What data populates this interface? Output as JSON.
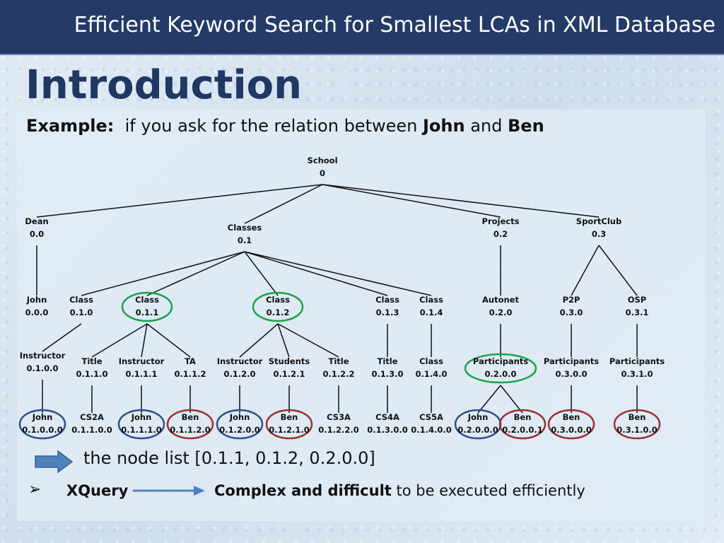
{
  "slide": {
    "title": "Efficient Keyword Search for Smallest LCAs in XML Database",
    "heading": "Introduction",
    "example_label": "Example:",
    "example_text_1": "if you ask for the relation between",
    "example_name_1": "John",
    "example_and": "and",
    "example_name_2": "Ben",
    "node_list_text": "the node list [0.1.1, 0.1.2, 0.2.0.0]",
    "bullet_symbol": "➢",
    "xquery_label": "XQuery",
    "complex_bold": "Complex and difficult",
    "complex_rest": "to be executed efficiently"
  },
  "colors": {
    "title_bar": "#243b68",
    "heading": "#1f3864",
    "green_circle": "#1aa34a",
    "blue_circle": "#2f4f8a",
    "red_circle": "#9b2f2f",
    "arrow_fill": "#4f81bd"
  },
  "tree": {
    "nodes": [
      {
        "id": "n0",
        "name": "School",
        "code": "0"
      },
      {
        "id": "n00",
        "name": "Dean",
        "code": "0.0"
      },
      {
        "id": "n01",
        "name": "Classes",
        "code": "0.1"
      },
      {
        "id": "n02",
        "name": "Projects",
        "code": "0.2"
      },
      {
        "id": "n03",
        "name": "SportClub",
        "code": "0.3"
      },
      {
        "id": "n000",
        "name": "John",
        "code": "0.0.0"
      },
      {
        "id": "n010",
        "name": "Class",
        "code": "0.1.0"
      },
      {
        "id": "n011",
        "name": "Class",
        "code": "0.1.1",
        "highlight": "green"
      },
      {
        "id": "n012",
        "name": "Class",
        "code": "0.1.2",
        "highlight": "green"
      },
      {
        "id": "n013",
        "name": "Class",
        "code": "0.1.3"
      },
      {
        "id": "n014",
        "name": "Class",
        "code": "0.1.4"
      },
      {
        "id": "n020",
        "name": "Autonet",
        "code": "0.2.0"
      },
      {
        "id": "n030",
        "name": "P2P",
        "code": "0.3.0"
      },
      {
        "id": "n031",
        "name": "OSP",
        "code": "0.3.1"
      },
      {
        "id": "n0100",
        "name": "Instructor",
        "code": "0.1.0.0"
      },
      {
        "id": "n0110",
        "name": "Title",
        "code": "0.1.1.0"
      },
      {
        "id": "n0111",
        "name": "Instructor",
        "code": "0.1.1.1"
      },
      {
        "id": "n0112",
        "name": "TA",
        "code": "0.1.1.2"
      },
      {
        "id": "n0120",
        "name": "Instructor",
        "code": "0.1.2.0"
      },
      {
        "id": "n0121",
        "name": "Students",
        "code": "0.1.2.1"
      },
      {
        "id": "n0122",
        "name": "Title",
        "code": "0.1.2.2"
      },
      {
        "id": "n0130",
        "name": "Title",
        "code": "0.1.3.0"
      },
      {
        "id": "n0140",
        "name": "Class",
        "code": "0.1.4.0"
      },
      {
        "id": "n0200",
        "name": "Participants",
        "code": "0.2.0.0",
        "highlight": "green"
      },
      {
        "id": "n0300",
        "name": "Participants",
        "code": "0.3.0.0"
      },
      {
        "id": "n0310",
        "name": "Participants",
        "code": "0.3.1.0"
      },
      {
        "id": "n01000",
        "name": "John",
        "code": "0.1.0.0.0",
        "highlight": "blue"
      },
      {
        "id": "n01100",
        "name": "CS2A",
        "code": "0.1.1.0.0"
      },
      {
        "id": "n01110",
        "name": "John",
        "code": "0.1.1.1.0",
        "highlight": "blue"
      },
      {
        "id": "n01120",
        "name": "Ben",
        "code": "0.1.1.2.0",
        "highlight": "red"
      },
      {
        "id": "n01200",
        "name": "John",
        "code": "0.1.2.0.0",
        "highlight": "blue"
      },
      {
        "id": "n01210",
        "name": "Ben",
        "code": "0.1.2.1.0",
        "highlight": "red"
      },
      {
        "id": "n01220",
        "name": "CS3A",
        "code": "0.1.2.2.0"
      },
      {
        "id": "n01300",
        "name": "CS4A",
        "code": "0.1.3.0.0"
      },
      {
        "id": "n01400",
        "name": "CS5A",
        "code": "0.1.4.0.0"
      },
      {
        "id": "n02000",
        "name": "John",
        "code": "0.2.0.0.0",
        "highlight": "blue"
      },
      {
        "id": "n02001",
        "name": "Ben",
        "code": "0.2.0.0.1",
        "highlight": "red"
      },
      {
        "id": "n03000",
        "name": "Ben",
        "code": "0.3.0.0.0",
        "highlight": "red"
      },
      {
        "id": "n03100",
        "name": "Ben",
        "code": "0.3.1.0.0",
        "highlight": "red"
      }
    ],
    "edges": [
      [
        "n0",
        "n00"
      ],
      [
        "n0",
        "n01"
      ],
      [
        "n0",
        "n02"
      ],
      [
        "n0",
        "n03"
      ],
      [
        "n00",
        "n000"
      ],
      [
        "n01",
        "n010"
      ],
      [
        "n01",
        "n011"
      ],
      [
        "n01",
        "n012"
      ],
      [
        "n01",
        "n013"
      ],
      [
        "n01",
        "n014"
      ],
      [
        "n02",
        "n020"
      ],
      [
        "n03",
        "n030"
      ],
      [
        "n03",
        "n031"
      ],
      [
        "n010",
        "n0100"
      ],
      [
        "n011",
        "n0110"
      ],
      [
        "n011",
        "n0111"
      ],
      [
        "n011",
        "n0112"
      ],
      [
        "n012",
        "n0120"
      ],
      [
        "n012",
        "n0121"
      ],
      [
        "n012",
        "n0122"
      ],
      [
        "n013",
        "n0130"
      ],
      [
        "n014",
        "n0140"
      ],
      [
        "n020",
        "n0200"
      ],
      [
        "n030",
        "n0300"
      ],
      [
        "n031",
        "n0310"
      ],
      [
        "n0100",
        "n01000"
      ],
      [
        "n0110",
        "n01100"
      ],
      [
        "n0111",
        "n01110"
      ],
      [
        "n0112",
        "n01120"
      ],
      [
        "n0120",
        "n01200"
      ],
      [
        "n0121",
        "n01210"
      ],
      [
        "n0122",
        "n01220"
      ],
      [
        "n0130",
        "n01300"
      ],
      [
        "n0140",
        "n01400"
      ],
      [
        "n0200",
        "n02000"
      ],
      [
        "n0200",
        "n02001"
      ],
      [
        "n0300",
        "n03000"
      ],
      [
        "n0310",
        "n03100"
      ]
    ]
  }
}
